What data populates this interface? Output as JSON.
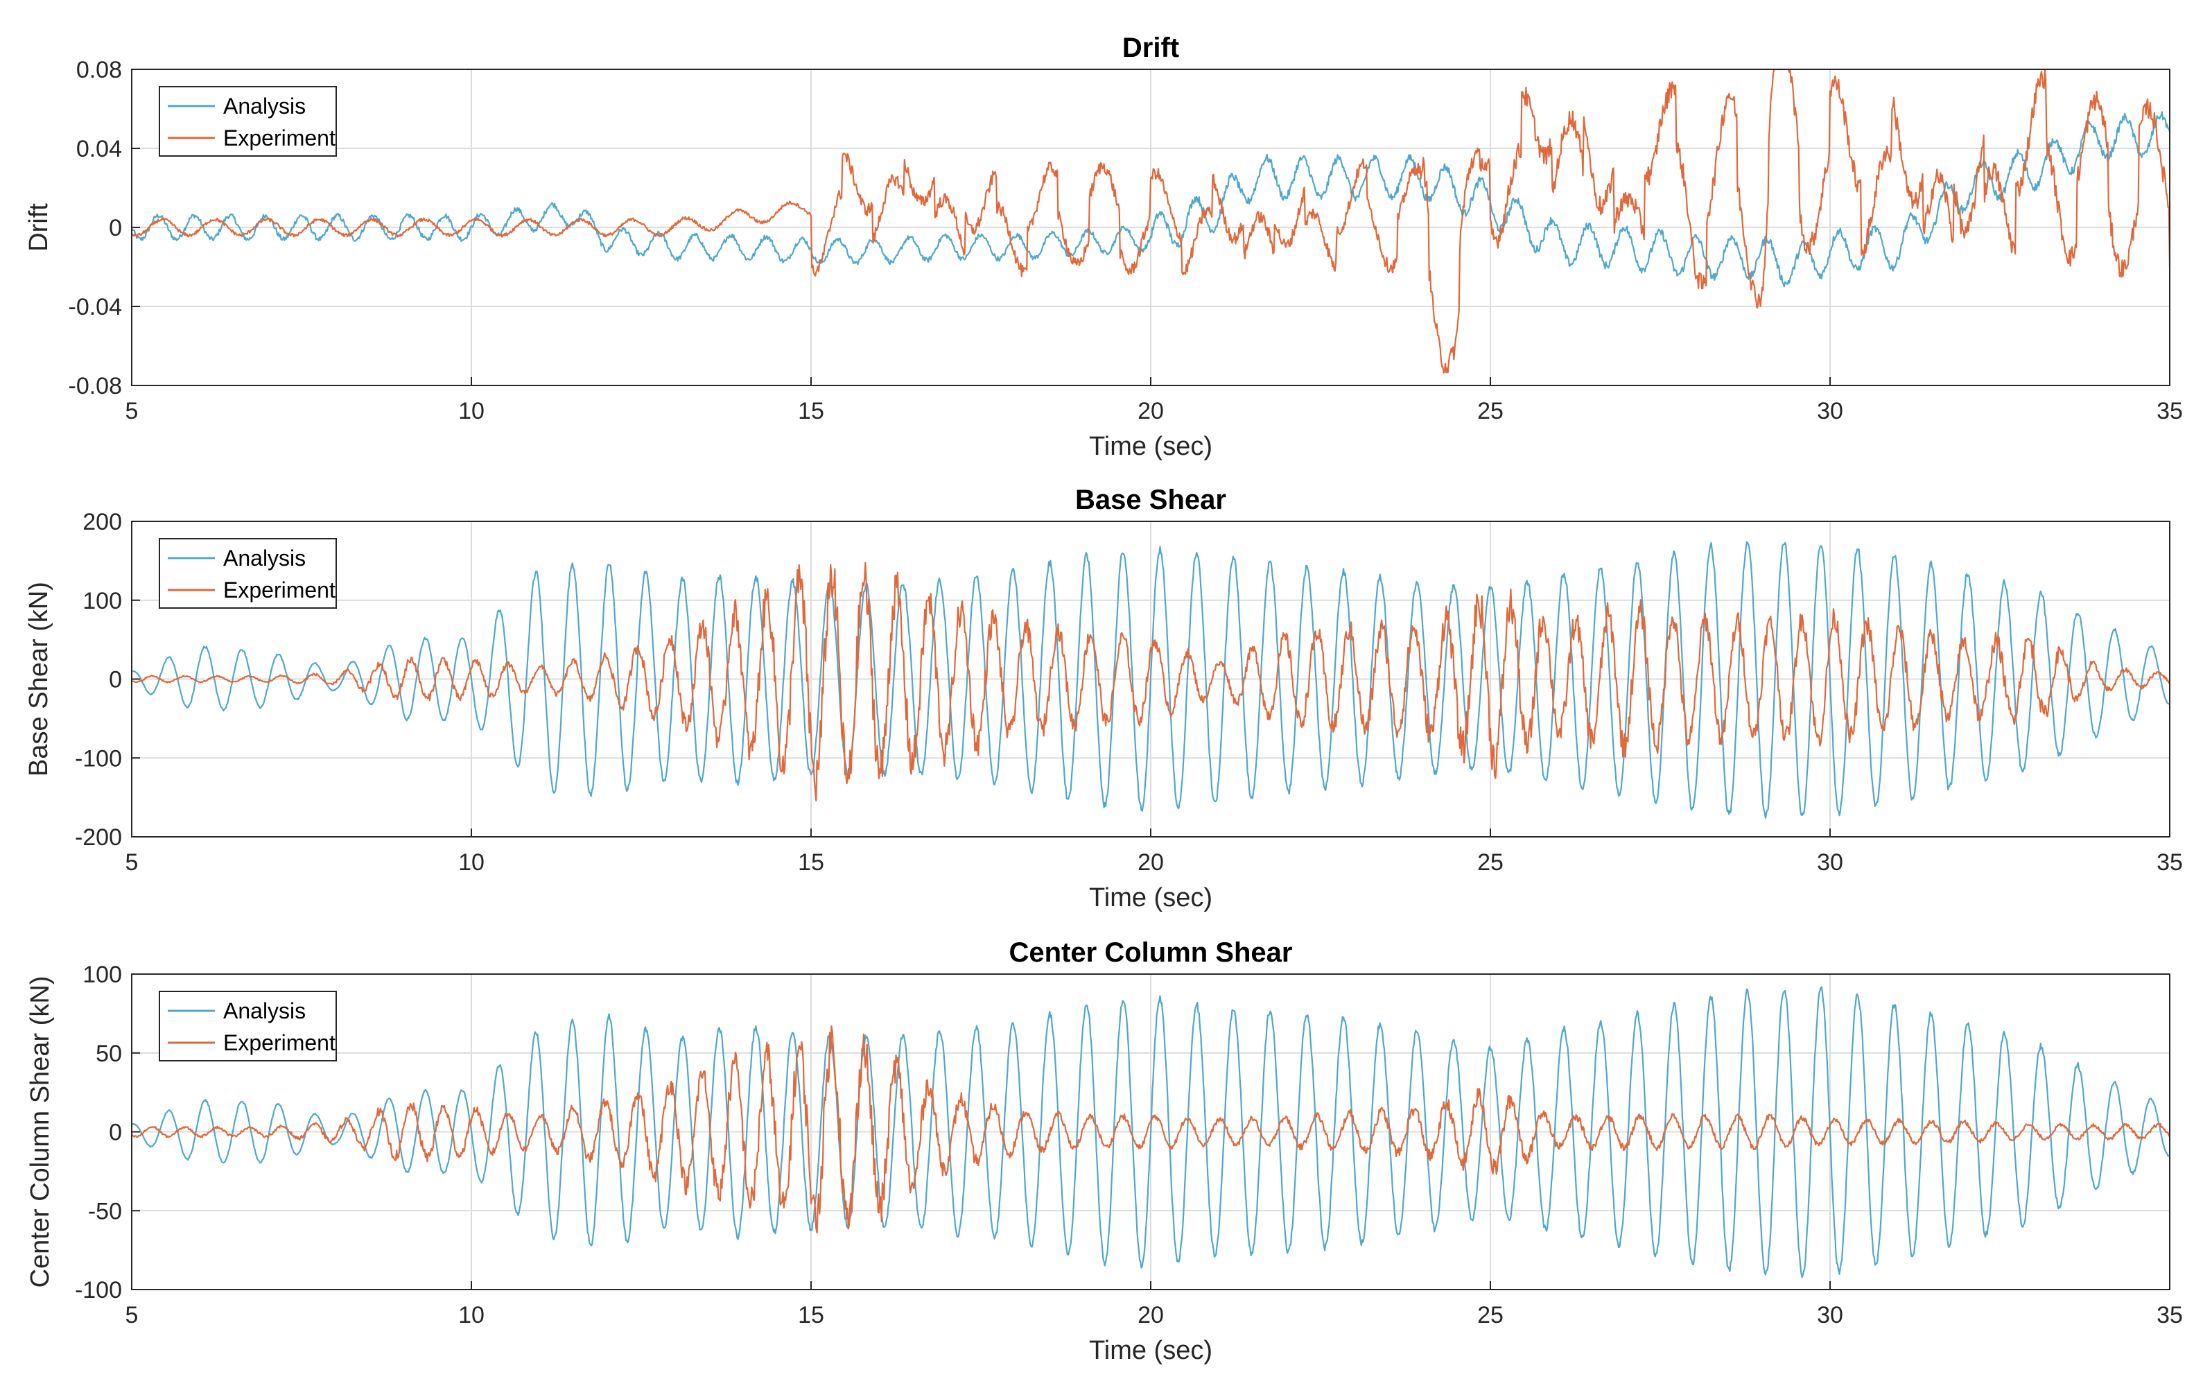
{
  "chart_data": [
    {
      "type": "line",
      "title": "Drift",
      "xlabel": "Time (sec)",
      "ylabel": "Drift",
      "xlim": [
        5,
        35
      ],
      "ylim": [
        -0.08,
        0.08
      ],
      "xticks": [
        "5",
        "10",
        "15",
        "20",
        "25",
        "30",
        "35"
      ],
      "yticks": [
        "0.08",
        "0.04",
        "0",
        "-0.04",
        "-0.08"
      ],
      "grid": true,
      "legend_position": "top-left",
      "series": [
        {
          "name": "Analysis",
          "color": "#4fa8cc",
          "x": [
            5,
            6,
            7,
            8,
            9,
            10,
            11,
            11.5,
            12,
            13,
            14,
            15,
            16,
            17,
            18,
            19,
            20,
            21,
            21.5,
            22,
            23,
            24,
            25,
            26,
            27,
            28,
            29,
            29.5,
            30,
            31,
            32,
            33,
            34,
            35
          ],
          "y": [
            0,
            0,
            0,
            0,
            0,
            0,
            0.005,
            0.007,
            -0.006,
            -0.01,
            -0.01,
            -0.012,
            -0.012,
            -0.01,
            -0.01,
            -0.008,
            -0.005,
            0.01,
            0.025,
            0.025,
            0.025,
            0.025,
            0.012,
            -0.008,
            -0.01,
            -0.015,
            -0.015,
            -0.02,
            -0.012,
            -0.01,
            0.02,
            0.03,
            0.045,
            0.047
          ]
        },
        {
          "name": "Experiment",
          "color": "#e0683a",
          "x": [
            5,
            6,
            7,
            8,
            9,
            10,
            11,
            12,
            13,
            14,
            15,
            15.5,
            16,
            16.6,
            17,
            18,
            19,
            20,
            21,
            22,
            23,
            24,
            24.5,
            25,
            25.5,
            26,
            26.5,
            27,
            27.5,
            28,
            28.5,
            29,
            29.2,
            29.6,
            30,
            31,
            32,
            33,
            33.5,
            34,
            35
          ],
          "y": [
            0,
            0,
            0,
            0,
            0,
            0,
            0,
            0,
            0,
            0.005,
            0.01,
            0.02,
            0.025,
            0.028,
            0.015,
            0.01,
            0.015,
            0.01,
            0.01,
            0.005,
            0.015,
            0.012,
            -0.03,
            0.05,
            0.04,
            0.07,
            0.04,
            0.015,
            0.065,
            0.02,
            0.04,
            0.015,
            0.078,
            0.045,
            0.045,
            0.04,
            0.02,
            0.05,
            0.04,
            0.035,
            0.03
          ]
        }
      ]
    },
    {
      "type": "line",
      "title": "Base Shear",
      "xlabel": "Time (sec)",
      "ylabel": "Base Shear (kN)",
      "xlim": [
        5,
        35
      ],
      "ylim": [
        -200,
        200
      ],
      "xticks": [
        "5",
        "10",
        "15",
        "20",
        "25",
        "30",
        "35"
      ],
      "yticks": [
        "200",
        "100",
        "0",
        "-100",
        "-200"
      ],
      "grid": true,
      "legend_position": "top-left",
      "series": [
        {
          "name": "Analysis",
          "color": "#4fa8cc",
          "x": [
            5,
            6,
            7,
            8,
            9,
            10,
            11,
            12,
            13,
            14,
            15,
            16,
            17,
            18,
            19,
            20,
            21,
            22,
            23,
            24,
            25,
            26,
            27,
            28,
            29,
            30,
            31,
            32,
            33,
            34,
            35
          ],
          "amplitude": [
            12,
            58,
            50,
            18,
            60,
            55,
            140,
            150,
            140,
            165,
            170,
            170,
            165,
            160,
            165,
            165,
            160,
            160,
            170,
            170,
            165,
            175,
            170,
            175,
            175,
            175,
            175,
            170,
            160,
            100,
            40
          ]
        },
        {
          "name": "Experiment",
          "color": "#e0683a",
          "x": [
            5,
            6,
            7,
            8,
            9,
            10,
            11,
            12,
            13,
            14,
            15,
            15.5,
            16,
            17,
            18,
            19,
            20,
            21,
            22,
            23,
            24,
            25,
            26,
            27,
            28,
            29,
            30,
            31,
            32,
            33,
            34,
            35
          ],
          "amplitude": [
            5,
            5,
            5,
            10,
            30,
            25,
            15,
            30,
            60,
            110,
            180,
            190,
            170,
            120,
            80,
            60,
            50,
            20,
            60,
            80,
            90,
            150,
            90,
            100,
            80,
            70,
            80,
            70,
            60,
            70,
            20,
            10
          ]
        }
      ]
    },
    {
      "type": "line",
      "title": "Center Column Shear",
      "xlabel": "Time (sec)",
      "ylabel": "Center Column Shear (kN)",
      "xlim": [
        5,
        35
      ],
      "ylim": [
        -100,
        100
      ],
      "xticks": [
        "5",
        "10",
        "15",
        "20",
        "25",
        "30",
        "35"
      ],
      "yticks": [
        "100",
        "50",
        "0",
        "-50",
        "-100"
      ],
      "grid": true,
      "legend_position": "top-left",
      "series": [
        {
          "name": "Analysis",
          "color": "#4fa8cc",
          "x": [
            5,
            6,
            7,
            8,
            9,
            10,
            11,
            12,
            13,
            14,
            15,
            16,
            17,
            18,
            19,
            20,
            21,
            22,
            23,
            24,
            25,
            26,
            27,
            28,
            29,
            30,
            31,
            32,
            33,
            34,
            35
          ],
          "amplitude": [
            6,
            28,
            28,
            10,
            30,
            28,
            65,
            75,
            65,
            85,
            85,
            85,
            85,
            80,
            85,
            85,
            80,
            85,
            90,
            90,
            75,
            85,
            85,
            88,
            90,
            92,
            90,
            88,
            80,
            50,
            20
          ]
        },
        {
          "name": "Experiment",
          "color": "#e0683a",
          "x": [
            5,
            6,
            7,
            8,
            9,
            10,
            11,
            12,
            13,
            14,
            15,
            15.5,
            16,
            17,
            18,
            19,
            20,
            21,
            22,
            23,
            24,
            25,
            26,
            27,
            28,
            29,
            30,
            31,
            32,
            33,
            34,
            35
          ],
          "amplitude": [
            4,
            4,
            4,
            8,
            20,
            15,
            10,
            20,
            35,
            55,
            75,
            85,
            70,
            30,
            15,
            10,
            10,
            8,
            10,
            15,
            20,
            35,
            12,
            12,
            10,
            10,
            8,
            8,
            8,
            6,
            6,
            6
          ]
        }
      ]
    }
  ]
}
